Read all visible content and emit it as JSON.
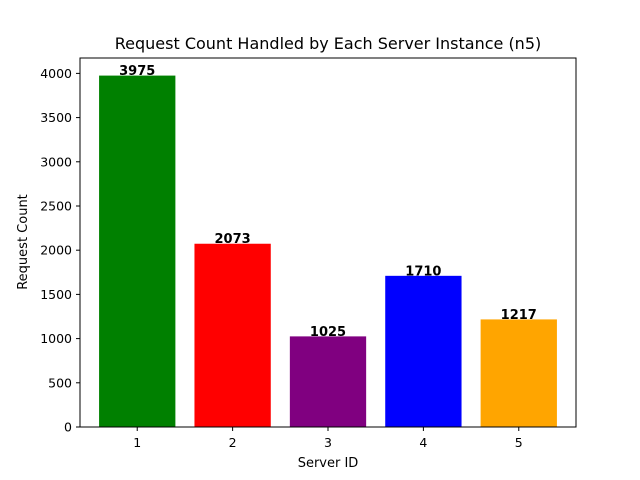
{
  "chart_data": {
    "type": "bar",
    "title": "Request Count Handled by Each Server Instance (n5)",
    "xlabel": "Server ID",
    "ylabel": "Request Count",
    "categories": [
      "1",
      "2",
      "3",
      "4",
      "5"
    ],
    "values": [
      3975,
      2073,
      1025,
      1710,
      1217
    ],
    "colors": [
      "#008000",
      "#ff0000",
      "#800080",
      "#0000ff",
      "#ffa500"
    ],
    "ylim": [
      0,
      4174
    ],
    "yticks": [
      0,
      500,
      1000,
      1500,
      2000,
      2500,
      3000,
      3500,
      4000
    ],
    "grid": false,
    "legend": "none"
  }
}
